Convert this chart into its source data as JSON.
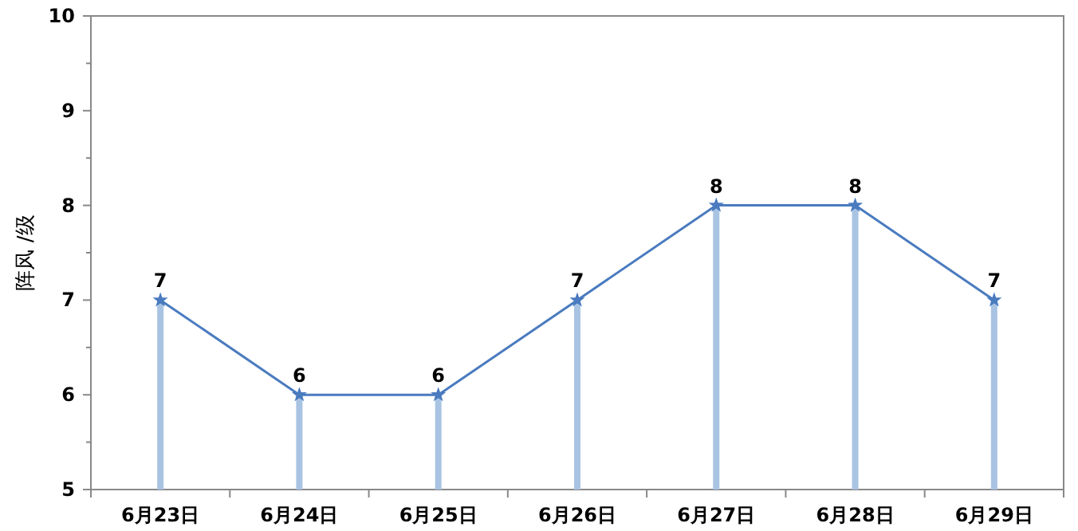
{
  "chart_data": {
    "type": "line",
    "ylabel": "阵风 /级",
    "categories": [
      "6月23日",
      "6月24日",
      "6月25日",
      "6月26日",
      "6月27日",
      "6月28日",
      "6月29日"
    ],
    "series": [
      {
        "type": "bar",
        "color": "#a9c3e3",
        "values": [
          7,
          6,
          6,
          7,
          8,
          8,
          7
        ]
      },
      {
        "color": "#4a7bbf",
        "values": [
          7,
          6,
          6,
          7,
          8,
          8,
          7
        ],
        "data_labels": true
      }
    ],
    "ylim": [
      5,
      10
    ],
    "yticks": [
      5,
      {
        "value": 5.5,
        "label": null
      },
      6,
      {
        "value": 6.5,
        "label": null
      },
      7,
      {
        "value": 7.5,
        "label": null
      },
      8,
      {
        "value": 8.5,
        "label": null
      },
      9,
      {
        "value": 9.5,
        "label": null
      },
      10
    ],
    "marker": "star",
    "line_style": "solid",
    "grid": false
  }
}
